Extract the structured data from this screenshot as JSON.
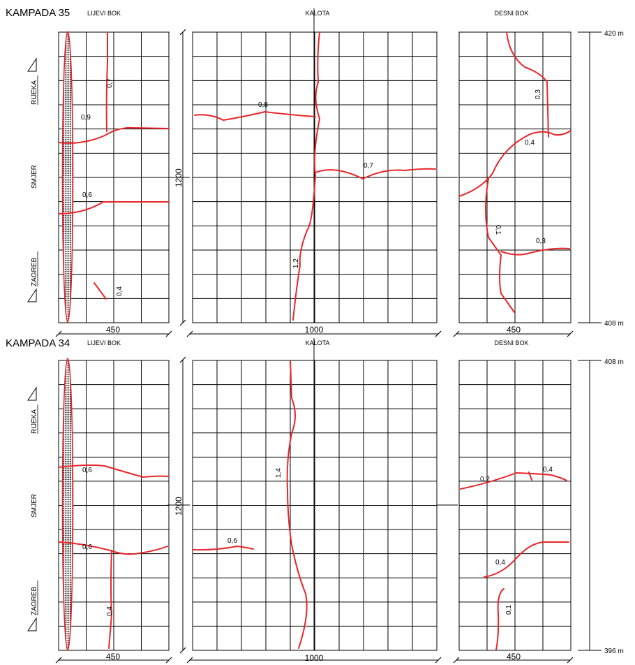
{
  "top": {
    "title": "KAMPADA 35",
    "sections": {
      "left": "LIJEVI BOK",
      "center": "KALOTA",
      "right": "DESNI BOK"
    },
    "widths": {
      "left": "450",
      "center": "1000",
      "right": "450"
    },
    "height_label": "1200",
    "chainage": {
      "top": "420 m",
      "bottom": "408 m"
    },
    "labels": {
      "left": [
        "0,7",
        "0,9",
        "0,6",
        "0,4"
      ],
      "center": [
        "0,8",
        "0,7",
        "1,2"
      ],
      "right": [
        "0,3",
        "0,4",
        "0,1",
        "0,3"
      ]
    }
  },
  "bottom": {
    "title": "KAMPADA 34",
    "sections": {
      "left": "LIJEVI BOK",
      "center": "KALOTA",
      "right": "DESNI BOK"
    },
    "widths": {
      "left": "450",
      "center": "1000",
      "right": "450"
    },
    "height_label": "1200",
    "chainage": {
      "top": "408 m",
      "bottom": "396 m"
    },
    "labels": {
      "left": [
        "0,6",
        "0,6",
        "0,4"
      ],
      "center": [
        "1,4",
        "0,6"
      ],
      "right": [
        "0,2",
        "0,4",
        "0,4",
        "0,1"
      ]
    }
  },
  "direction": {
    "rijeka": "RIJEKA",
    "smjer": "SMJER",
    "zagreb": "ZAGREB"
  },
  "colors": {
    "crack": "#e8262a",
    "grid": "#000000"
  }
}
